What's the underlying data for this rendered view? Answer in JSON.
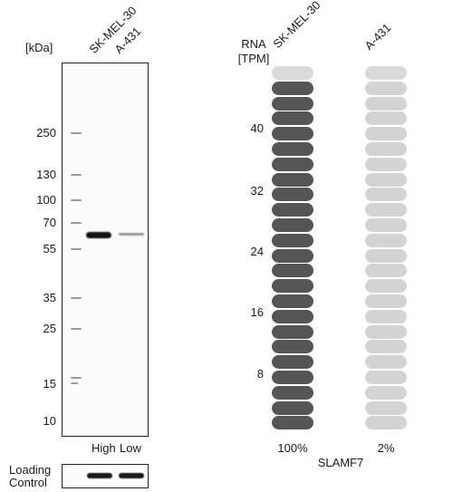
{
  "western_blot": {
    "unit_label": "[kDa]",
    "lane_labels": [
      "SK-MEL-30",
      "A-431"
    ],
    "marker_labels": [
      "250",
      "130",
      "100",
      "70",
      "55",
      "35",
      "25",
      "15",
      "10"
    ],
    "lane_level_labels": [
      "High",
      "Low"
    ],
    "loading_control_label_line1": "Loading",
    "loading_control_label_line2": "Control"
  },
  "rna": {
    "header_line1": "RNA",
    "header_line2": "[TPM]",
    "column_labels": [
      "SK-MEL-30",
      "A-431"
    ],
    "axis_ticks": [
      "40",
      "32",
      "24",
      "16",
      "8"
    ],
    "percent_labels": [
      "100%",
      "2%"
    ],
    "gene_name": "SLAMF7",
    "colors": {
      "dark": "#555555",
      "light": "#d3d3d3",
      "top_light": "#dadada"
    }
  }
}
